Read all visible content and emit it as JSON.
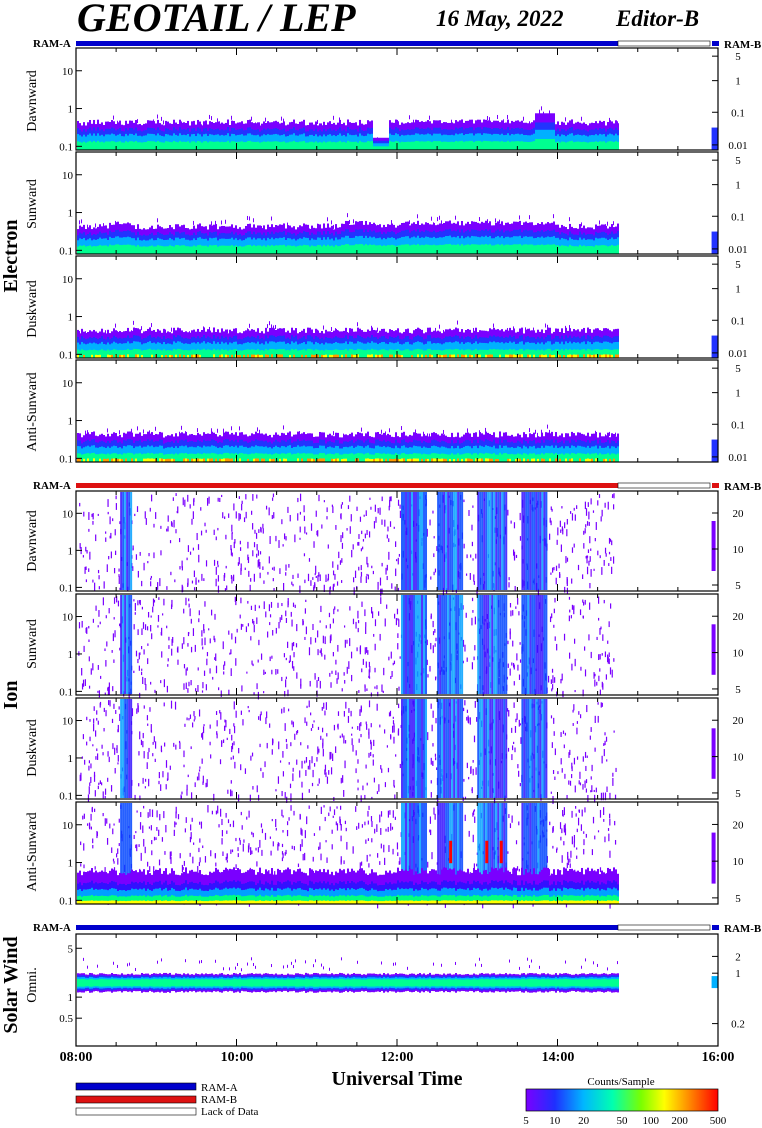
{
  "header": {
    "title": "GEOTAIL / LEP",
    "date": "16 May, 2022",
    "editor": "Editor-B"
  },
  "ram_labels": {
    "a": "RAM-A",
    "b": "RAM-B"
  },
  "groups": [
    {
      "name": "Electron",
      "panels": [
        "Dawnward",
        "Sunward",
        "Duskward",
        "Anti-Sunward"
      ]
    },
    {
      "name": "Ion",
      "panels": [
        "Dawnward",
        "Sunward",
        "Duskward",
        "Anti-Sunward"
      ]
    },
    {
      "name": "Solar Wind",
      "panels": [
        "Omni."
      ]
    }
  ],
  "x_axis": {
    "title": "Universal Time",
    "ticks": [
      "08:00",
      "10:00",
      "12:00",
      "14:00",
      "16:00"
    ]
  },
  "left_ticks": {
    "standard": [
      "10",
      "1",
      "0.1"
    ],
    "solar": [
      "5",
      "1",
      "0.5"
    ]
  },
  "right_ticks": {
    "electron": [
      "5",
      "1",
      "0.1",
      "0.01"
    ],
    "ion": [
      "20",
      "10",
      "5"
    ],
    "solar": [
      "2",
      "1",
      "0.2"
    ]
  },
  "legend": {
    "ram_a": "RAM-A",
    "ram_b": "RAM-B",
    "lack": "Lack of Data",
    "colorbar_title": "Counts/Sample",
    "colorbar_ticks": [
      "5",
      "10",
      "20",
      "50",
      "100",
      "200",
      "500"
    ],
    "colors": {
      "ram_a": "#0000cc",
      "ram_b": "#dd1111"
    }
  },
  "chart_data": {
    "type": "heatmap",
    "title": "GEOTAIL / LEP 16 May, 2022 Editor-B",
    "xlabel": "Universal Time",
    "x_range_hours": [
      8,
      16
    ],
    "data_coverage_hours": [
      [
        8.0,
        14.75
      ],
      [
        15.92,
        16.0
      ]
    ],
    "ram_mode": {
      "electron": "RAM-A",
      "ion": "RAM-B",
      "solar_wind": "RAM-A"
    },
    "colorscale": {
      "label": "Counts/Sample",
      "scale": "log",
      "range": [
        5,
        500
      ],
      "ticks": [
        5,
        10,
        20,
        50,
        100,
        200,
        500
      ]
    },
    "panels": [
      {
        "group": "Electron",
        "direction": "Dawnward",
        "y_scale": "log",
        "y_range": [
          0.08,
          40
        ]
      },
      {
        "group": "Electron",
        "direction": "Sunward",
        "y_scale": "log",
        "y_range": [
          0.08,
          40
        ]
      },
      {
        "group": "Electron",
        "direction": "Duskward",
        "y_scale": "log",
        "y_range": [
          0.08,
          40
        ]
      },
      {
        "group": "Electron",
        "direction": "Anti-Sunward",
        "y_scale": "log",
        "y_range": [
          0.08,
          40
        ]
      },
      {
        "group": "Ion",
        "direction": "Dawnward",
        "y_scale": "log",
        "y_range": [
          0.08,
          40
        ]
      },
      {
        "group": "Ion",
        "direction": "Sunward",
        "y_scale": "log",
        "y_range": [
          0.08,
          40
        ]
      },
      {
        "group": "Ion",
        "direction": "Duskward",
        "y_scale": "log",
        "y_range": [
          0.08,
          40
        ]
      },
      {
        "group": "Ion",
        "direction": "Anti-Sunward",
        "y_scale": "log",
        "y_range": [
          0.08,
          40
        ]
      },
      {
        "group": "Solar Wind",
        "direction": "Omni.",
        "y_scale": "log",
        "y_range": [
          0.2,
          8
        ]
      }
    ]
  }
}
